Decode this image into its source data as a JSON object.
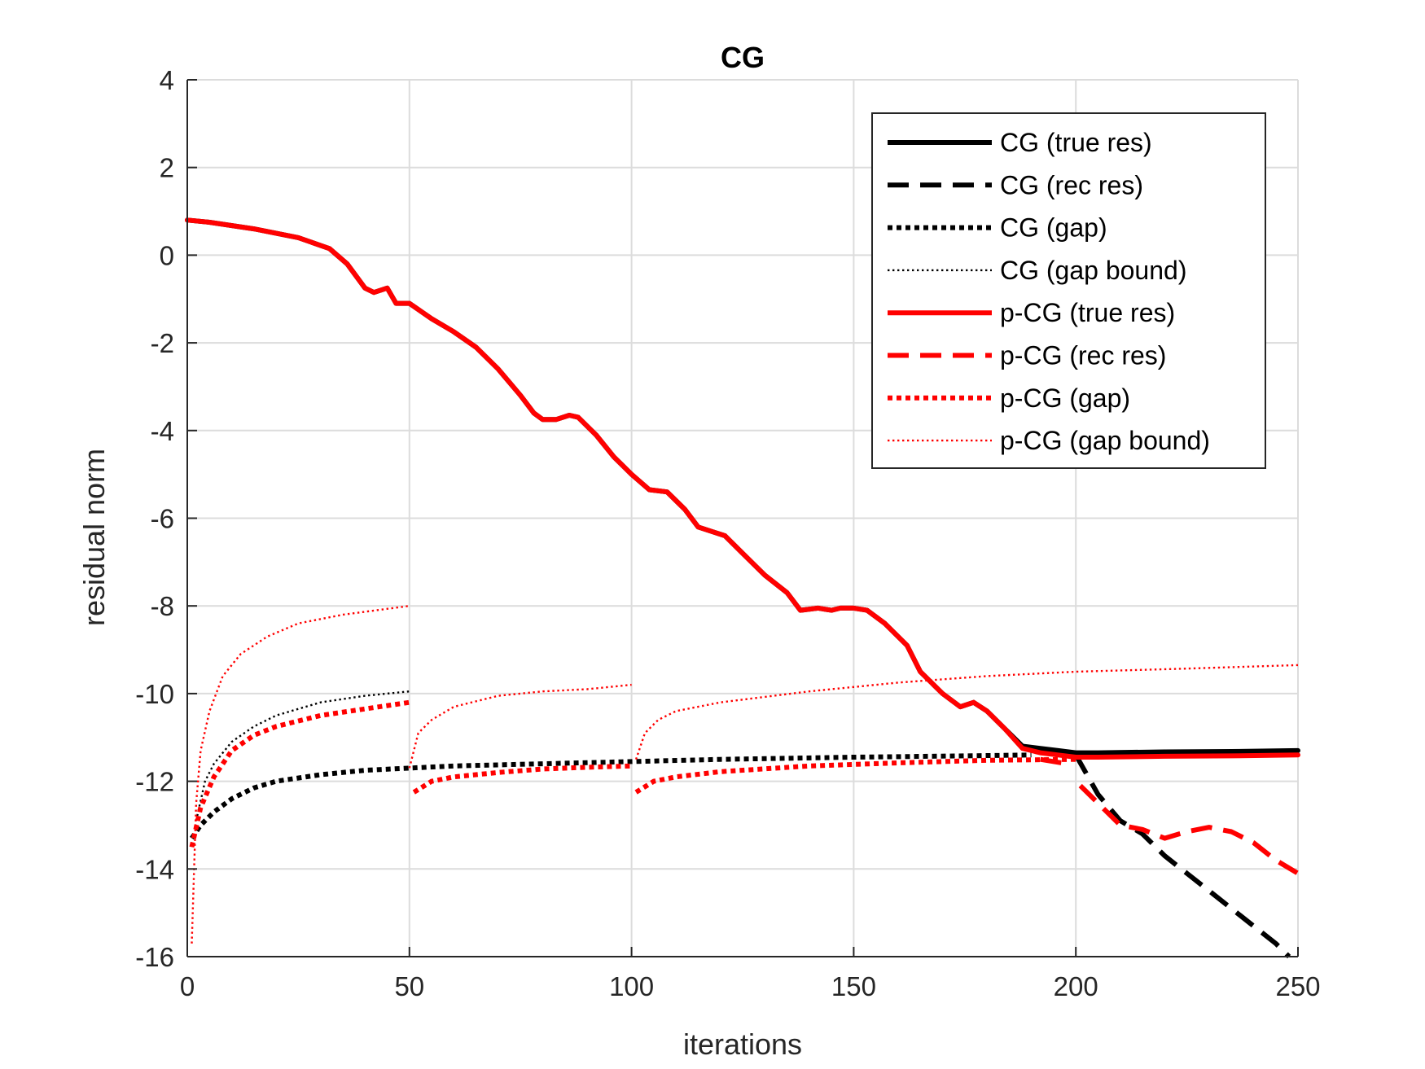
{
  "chart_data": {
    "type": "line",
    "title": "CG",
    "xlabel": "iterations",
    "ylabel": "residual norm",
    "xlim": [
      0,
      250
    ],
    "ylim": [
      -16,
      4
    ],
    "grid": true,
    "legend_position": "top-right",
    "x_ticks": [
      0,
      50,
      100,
      150,
      200,
      250
    ],
    "x_tick_labels": [
      "0",
      "50",
      "100",
      "150",
      "200",
      "250"
    ],
    "y_ticks": [
      4,
      2,
      0,
      -2,
      -4,
      -6,
      -8,
      -10,
      -12,
      -14,
      -16
    ],
    "y_tick_labels": [
      "4",
      "2",
      "0",
      "-2",
      "-4",
      "-6",
      "-8",
      "-10",
      "-12",
      "-14",
      "-16"
    ],
    "series": [
      {
        "name": "CG (true res)",
        "color": "#000000",
        "style": "solid",
        "weight": "thick",
        "segments": [
          [
            [
              0,
              0.8
            ],
            [
              5,
              0.75
            ],
            [
              15,
              0.6
            ],
            [
              25,
              0.4
            ],
            [
              32,
              0.15
            ],
            [
              36,
              -0.2
            ],
            [
              40,
              -0.75
            ],
            [
              42,
              -0.85
            ],
            [
              45,
              -0.75
            ],
            [
              47,
              -1.1
            ],
            [
              50,
              -1.1
            ],
            [
              55,
              -1.45
            ],
            [
              60,
              -1.75
            ],
            [
              65,
              -2.1
            ],
            [
              70,
              -2.6
            ],
            [
              75,
              -3.2
            ],
            [
              78,
              -3.6
            ],
            [
              80,
              -3.75
            ],
            [
              83,
              -3.75
            ],
            [
              86,
              -3.65
            ],
            [
              88,
              -3.7
            ],
            [
              92,
              -4.1
            ],
            [
              96,
              -4.6
            ],
            [
              100,
              -5.0
            ],
            [
              104,
              -5.35
            ],
            [
              108,
              -5.4
            ],
            [
              112,
              -5.8
            ],
            [
              115,
              -6.2
            ],
            [
              118,
              -6.3
            ],
            [
              121,
              -6.4
            ],
            [
              125,
              -6.8
            ],
            [
              130,
              -7.3
            ],
            [
              135,
              -7.7
            ],
            [
              138,
              -8.1
            ],
            [
              142,
              -8.05
            ],
            [
              145,
              -8.1
            ],
            [
              147,
              -8.05
            ],
            [
              150,
              -8.05
            ],
            [
              153,
              -8.1
            ],
            [
              157,
              -8.4
            ],
            [
              162,
              -8.9
            ],
            [
              165,
              -9.5
            ],
            [
              170,
              -10.0
            ],
            [
              174,
              -10.3
            ],
            [
              177,
              -10.2
            ],
            [
              180,
              -10.4
            ],
            [
              184,
              -10.8
            ],
            [
              188,
              -11.2
            ],
            [
              192,
              -11.25
            ],
            [
              196,
              -11.3
            ],
            [
              200,
              -11.35
            ],
            [
              205,
              -11.35
            ],
            [
              220,
              -11.33
            ],
            [
              235,
              -11.32
            ],
            [
              250,
              -11.3
            ]
          ]
        ]
      },
      {
        "name": "CG (rec res)",
        "color": "#000000",
        "style": "dashed",
        "weight": "thick",
        "segments": [
          [
            [
              200,
              -11.4
            ],
            [
              205,
              -12.3
            ],
            [
              210,
              -12.9
            ],
            [
              215,
              -13.2
            ],
            [
              220,
              -13.7
            ],
            [
              225,
              -14.1
            ],
            [
              230,
              -14.5
            ],
            [
              235,
              -14.9
            ],
            [
              240,
              -15.3
            ],
            [
              245,
              -15.7
            ],
            [
              248,
              -16.0
            ]
          ]
        ]
      },
      {
        "name": "CG (gap)",
        "color": "#000000",
        "style": "dotted",
        "weight": "thick",
        "segments": [
          [
            [
              1,
              -13.3
            ],
            [
              3,
              -13.0
            ],
            [
              6,
              -12.7
            ],
            [
              10,
              -12.4
            ],
            [
              15,
              -12.15
            ],
            [
              20,
              -12.0
            ],
            [
              30,
              -11.85
            ],
            [
              40,
              -11.75
            ],
            [
              50,
              -11.7
            ],
            [
              60,
              -11.65
            ],
            [
              80,
              -11.6
            ],
            [
              100,
              -11.55
            ],
            [
              120,
              -11.5
            ],
            [
              150,
              -11.45
            ],
            [
              175,
              -11.42
            ],
            [
              190,
              -11.4
            ]
          ]
        ]
      },
      {
        "name": "CG (gap bound)",
        "color": "#000000",
        "style": "dotted",
        "weight": "thin",
        "segments": [
          [
            [
              2,
              -12.9
            ],
            [
              4,
              -12.0
            ],
            [
              6,
              -11.6
            ],
            [
              10,
              -11.1
            ],
            [
              15,
              -10.75
            ],
            [
              20,
              -10.5
            ],
            [
              25,
              -10.35
            ],
            [
              30,
              -10.2
            ],
            [
              40,
              -10.05
            ],
            [
              50,
              -9.95
            ]
          ]
        ]
      },
      {
        "name": "p-CG (true res)",
        "color": "#ff0000",
        "style": "solid",
        "weight": "thick",
        "segments": [
          [
            [
              0,
              0.8
            ],
            [
              5,
              0.75
            ],
            [
              15,
              0.6
            ],
            [
              25,
              0.4
            ],
            [
              32,
              0.15
            ],
            [
              36,
              -0.2
            ],
            [
              40,
              -0.75
            ],
            [
              42,
              -0.85
            ],
            [
              45,
              -0.75
            ],
            [
              47,
              -1.1
            ],
            [
              50,
              -1.1
            ],
            [
              55,
              -1.45
            ],
            [
              60,
              -1.75
            ],
            [
              65,
              -2.1
            ],
            [
              70,
              -2.6
            ],
            [
              75,
              -3.2
            ],
            [
              78,
              -3.6
            ],
            [
              80,
              -3.75
            ],
            [
              83,
              -3.75
            ],
            [
              86,
              -3.65
            ],
            [
              88,
              -3.7
            ],
            [
              92,
              -4.1
            ],
            [
              96,
              -4.6
            ],
            [
              100,
              -5.0
            ],
            [
              104,
              -5.35
            ],
            [
              108,
              -5.4
            ],
            [
              112,
              -5.8
            ],
            [
              115,
              -6.2
            ],
            [
              118,
              -6.3
            ],
            [
              121,
              -6.4
            ],
            [
              125,
              -6.8
            ],
            [
              130,
              -7.3
            ],
            [
              135,
              -7.7
            ],
            [
              138,
              -8.1
            ],
            [
              142,
              -8.05
            ],
            [
              145,
              -8.1
            ],
            [
              147,
              -8.05
            ],
            [
              150,
              -8.05
            ],
            [
              153,
              -8.1
            ],
            [
              157,
              -8.4
            ],
            [
              162,
              -8.9
            ],
            [
              165,
              -9.5
            ],
            [
              170,
              -10.0
            ],
            [
              174,
              -10.3
            ],
            [
              177,
              -10.2
            ],
            [
              180,
              -10.4
            ],
            [
              184,
              -10.8
            ],
            [
              188,
              -11.25
            ],
            [
              192,
              -11.35
            ],
            [
              196,
              -11.4
            ],
            [
              200,
              -11.45
            ],
            [
              205,
              -11.45
            ],
            [
              220,
              -11.43
            ],
            [
              235,
              -11.42
            ],
            [
              250,
              -11.4
            ]
          ]
        ]
      },
      {
        "name": "p-CG (rec res)",
        "color": "#ff0000",
        "style": "dashed",
        "weight": "thick",
        "segments": [
          [
            [
              192,
              -11.5
            ],
            [
              198,
              -11.6
            ]
          ],
          [
            [
              201,
              -12.1
            ],
            [
              205,
              -12.5
            ],
            [
              210,
              -13.0
            ],
            [
              215,
              -13.1
            ],
            [
              220,
              -13.3
            ],
            [
              225,
              -13.15
            ],
            [
              230,
              -13.05
            ],
            [
              235,
              -13.15
            ],
            [
              240,
              -13.4
            ],
            [
              245,
              -13.8
            ],
            [
              250,
              -14.1
            ]
          ]
        ]
      },
      {
        "name": "p-CG (gap)",
        "color": "#ff0000",
        "style": "dotted",
        "weight": "thick",
        "segments": [
          [
            [
              1,
              -13.5
            ],
            [
              3,
              -12.6
            ],
            [
              6,
              -11.9
            ],
            [
              10,
              -11.3
            ],
            [
              15,
              -10.95
            ],
            [
              20,
              -10.75
            ],
            [
              30,
              -10.5
            ],
            [
              40,
              -10.35
            ],
            [
              50,
              -10.2
            ]
          ],
          [
            [
              51,
              -12.25
            ],
            [
              55,
              -12.0
            ],
            [
              60,
              -11.9
            ],
            [
              70,
              -11.8
            ],
            [
              80,
              -11.72
            ],
            [
              90,
              -11.68
            ],
            [
              100,
              -11.65
            ]
          ],
          [
            [
              101,
              -12.25
            ],
            [
              105,
              -12.0
            ],
            [
              110,
              -11.9
            ],
            [
              120,
              -11.78
            ],
            [
              140,
              -11.65
            ],
            [
              160,
              -11.58
            ],
            [
              180,
              -11.52
            ],
            [
              200,
              -11.5
            ]
          ]
        ]
      },
      {
        "name": "p-CG (gap bound)",
        "color": "#ff0000",
        "style": "dotted",
        "weight": "thin",
        "segments": [
          [
            [
              1,
              -15.7
            ],
            [
              2,
              -12.5
            ],
            [
              3,
              -11.3
            ],
            [
              5,
              -10.4
            ],
            [
              8,
              -9.6
            ],
            [
              12,
              -9.1
            ],
            [
              18,
              -8.7
            ],
            [
              25,
              -8.4
            ],
            [
              35,
              -8.2
            ],
            [
              50,
              -8.0
            ]
          ],
          [
            [
              50,
              -11.7
            ],
            [
              52,
              -10.9
            ],
            [
              55,
              -10.6
            ],
            [
              60,
              -10.3
            ],
            [
              70,
              -10.05
            ],
            [
              80,
              -9.95
            ],
            [
              90,
              -9.9
            ],
            [
              100,
              -9.8
            ]
          ],
          [
            [
              101,
              -11.5
            ],
            [
              103,
              -10.9
            ],
            [
              106,
              -10.6
            ],
            [
              110,
              -10.4
            ],
            [
              120,
              -10.2
            ],
            [
              140,
              -9.95
            ],
            [
              160,
              -9.75
            ],
            [
              180,
              -9.6
            ],
            [
              200,
              -9.5
            ],
            [
              225,
              -9.43
            ],
            [
              250,
              -9.35
            ]
          ]
        ]
      }
    ]
  }
}
